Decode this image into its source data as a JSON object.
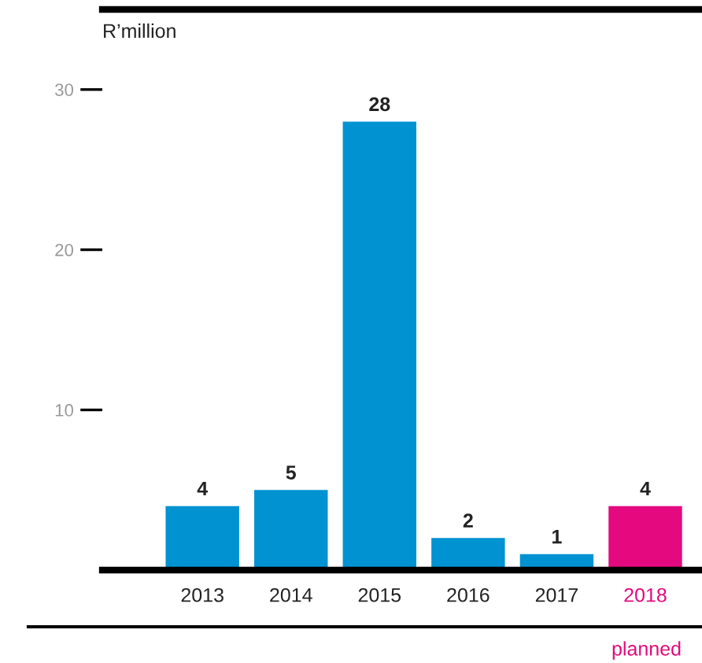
{
  "chart_data": {
    "type": "bar",
    "ylabel": "R’million",
    "categories": [
      "2013",
      "2014",
      "2015",
      "2016",
      "2017",
      "2018"
    ],
    "values": [
      4,
      5,
      28,
      2,
      1,
      4
    ],
    "colors": [
      "#0092d1",
      "#0092d1",
      "#0092d1",
      "#0092d1",
      "#0092d1",
      "#e4097e"
    ],
    "ylim": [
      0,
      35
    ],
    "yticks": [
      10,
      20,
      30
    ],
    "grid": false,
    "data_labels": true,
    "annotations": [
      "planned"
    ]
  }
}
